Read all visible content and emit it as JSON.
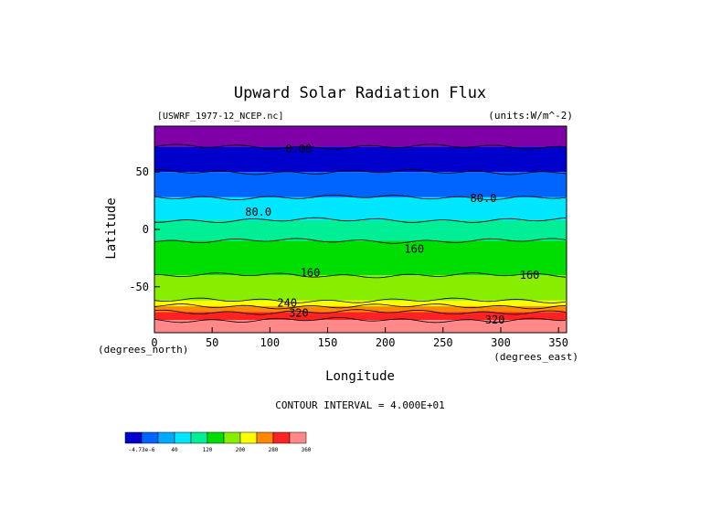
{
  "chart_data": {
    "type": "heatmap",
    "title": "Upward Solar Radiation Flux",
    "subtitle_left": "[USWRF_1977-12_NCEP.nc]",
    "subtitle_right": "(units:W/m^-2)",
    "xlabel": "Longitude",
    "ylabel": "Latitude",
    "x_unit_label": "(degrees_east)",
    "y_unit_label": "(degrees_north)",
    "xlim": [
      0,
      357
    ],
    "ylim": [
      -90,
      90
    ],
    "x_ticks": [
      0,
      50,
      100,
      150,
      200,
      250,
      300,
      350
    ],
    "y_ticks": [
      50,
      0,
      -50
    ],
    "contour_interval_text": "CONTOUR INTERVAL = 4.000E+01",
    "contour_labels": [
      {
        "text": "0.00",
        "lon": 125,
        "lat": 70
      },
      {
        "text": "80.0",
        "lon": 285,
        "lat": 27
      },
      {
        "text": "80.0",
        "lon": 90,
        "lat": 15
      },
      {
        "text": "160",
        "lon": 225,
        "lat": -17
      },
      {
        "text": "160",
        "lon": 325,
        "lat": -40
      },
      {
        "text": "160",
        "lon": 135,
        "lat": -38
      },
      {
        "text": "240",
        "lon": 115,
        "lat": -64
      },
      {
        "text": "320",
        "lon": 125,
        "lat": -73
      },
      {
        "text": "320",
        "lon": 295,
        "lat": -79
      }
    ],
    "latitude_bands": [
      {
        "lat_top": 90,
        "lat_bottom": 72,
        "value": 0
      },
      {
        "lat_top": 72,
        "lat_bottom": 50,
        "value": 40
      },
      {
        "lat_top": 50,
        "lat_bottom": 28,
        "value": 80
      },
      {
        "lat_top": 28,
        "lat_bottom": 8,
        "value": 120
      },
      {
        "lat_top": 8,
        "lat_bottom": -10,
        "value": 160
      },
      {
        "lat_top": -10,
        "lat_bottom": -40,
        "value": 200
      },
      {
        "lat_top": -40,
        "lat_bottom": -62,
        "value": 240
      },
      {
        "lat_top": -62,
        "lat_bottom": -67,
        "value": 280
      },
      {
        "lat_top": -67,
        "lat_bottom": -72,
        "value": 320
      },
      {
        "lat_top": -72,
        "lat_bottom": -79,
        "value": 360
      },
      {
        "lat_top": -79,
        "lat_bottom": -90,
        "value": 400
      }
    ],
    "colorbar": {
      "colors": [
        "#0000cd",
        "#0064ff",
        "#00aaff",
        "#00e6ff",
        "#00ee96",
        "#00dd00",
        "#88ee00",
        "#ffff00",
        "#ff8800",
        "#ff2222",
        "#ff8888"
      ],
      "tick_labels": [
        "-4.73e-6",
        "40",
        "120",
        "200",
        "280",
        "360"
      ]
    },
    "band_colors": [
      "#8000a8",
      "#0000cd",
      "#0064ff",
      "#00e6ff",
      "#00ee96",
      "#00dd00",
      "#88ee00",
      "#ffff00",
      "#ff8800",
      "#ff2222",
      "#ff8888"
    ]
  }
}
